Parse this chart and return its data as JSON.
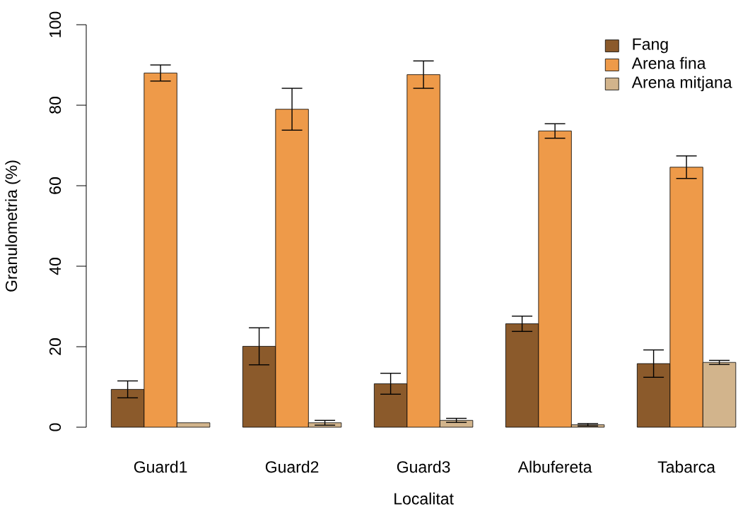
{
  "chart_data": {
    "type": "bar",
    "xlabel": "Localitat",
    "ylabel": "Granulometria (%)",
    "categories": [
      "Guard1",
      "Guard2",
      "Guard3",
      "Albufereta",
      "Tabarca"
    ],
    "series": [
      {
        "name": "Fang",
        "color": "#8b5a2b",
        "values": [
          9.4,
          20.1,
          10.8,
          25.7,
          15.8
        ],
        "errors": [
          2.1,
          4.6,
          2.6,
          1.9,
          3.4
        ]
      },
      {
        "name": "Arena fina",
        "color": "#ee9a49",
        "values": [
          88,
          79,
          87.6,
          73.6,
          64.6
        ],
        "errors": [
          2.0,
          5.2,
          3.4,
          1.8,
          2.8
        ]
      },
      {
        "name": "Arena mitjana",
        "color": "#d2b48c",
        "values": [
          1.1,
          1.1,
          1.7,
          0.6,
          16.1
        ],
        "errors": [
          null,
          0.6,
          0.5,
          0.3,
          0.5
        ]
      }
    ],
    "ylim": [
      0,
      100
    ],
    "yticks": [
      0,
      20,
      40,
      60,
      80,
      100
    ],
    "legend": "top right"
  }
}
